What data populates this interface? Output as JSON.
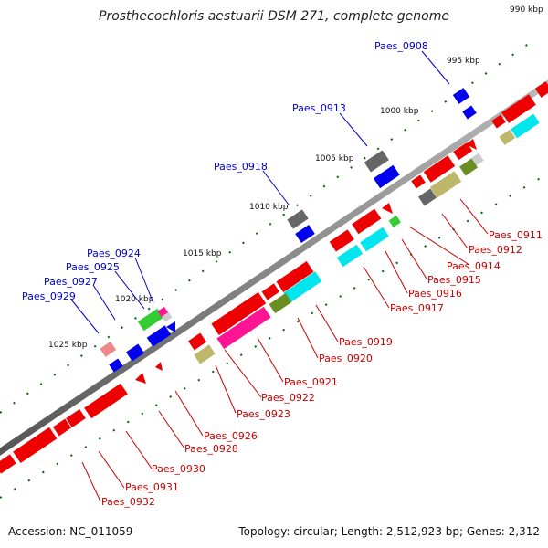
{
  "title": "Prosthecochloris aestuarii DSM 271, complete genome",
  "footer": {
    "accession": "Accession: NC_011059",
    "topology": "Topology: circular; Length: 2,512,923 bp; Genes: 2,312"
  },
  "kbp_labels": [
    "990 kbp",
    "995 kbp",
    "1000 kbp",
    "1005 kbp",
    "1010 kbp",
    "1015 kbp",
    "1020 kbp",
    "1025 kbp"
  ],
  "gene_labels_forward": [
    "Paes_0908",
    "Paes_0913",
    "Paes_0918",
    "Paes_0924",
    "Paes_0925",
    "Paes_0927",
    "Paes_0929"
  ],
  "gene_labels_reverse": [
    "Paes_0911",
    "Paes_0912",
    "Paes_0914",
    "Paes_0915",
    "Paes_0916",
    "Paes_0917",
    "Paes_0919",
    "Paes_0920",
    "Paes_0921",
    "Paes_0922",
    "Paes_0923",
    "Paes_0926",
    "Paes_0928",
    "Paes_0930",
    "Paes_0931",
    "Paes_0932"
  ],
  "colors": {
    "forward": "#0000ee",
    "reverse": "#ee0000",
    "cyan": "#00e5ee",
    "olive": "#bdb76b",
    "green": "#33cc33",
    "magenta": "#ff1493",
    "grey": "#666666",
    "backbone": "#888888",
    "tick": "#006600"
  }
}
